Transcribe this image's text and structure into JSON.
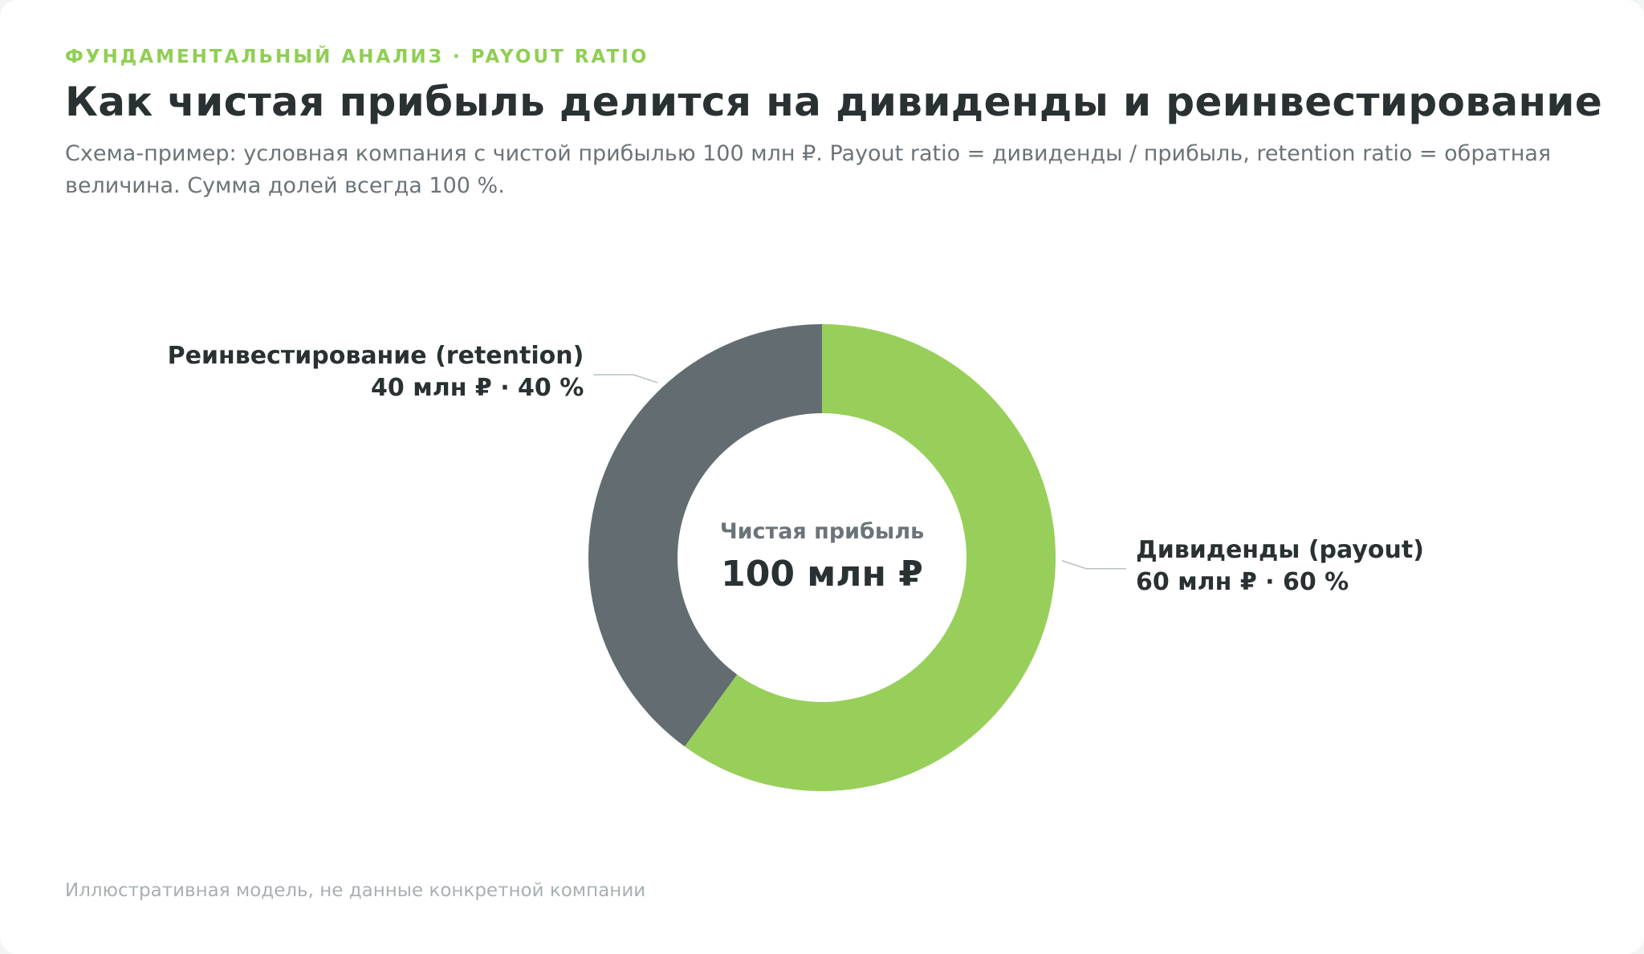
{
  "header": {
    "eyebrow": "ФУНДАМЕНТАЛЬНЫЙ АНАЛИЗ · PAYOUT RATIO",
    "title": "Как чистая прибыль делится на дивиденды и реинвестирование",
    "subtitle": "Схема-пример: условная компания с чистой прибылью 100 млн ₽. Payout ratio = дивиденды / прибыль, retention ratio = обратная величина. Сумма долей всегда 100 %."
  },
  "footnote": "Иллюстративная модель, не данные конкретной компании",
  "chart_data": {
    "type": "pie",
    "donut": true,
    "center": {
      "caption": "Чистая прибыль",
      "value": "100 млн ₽"
    },
    "slices": [
      {
        "name": "Дивиденды (payout)",
        "value": 60,
        "label_value": "60 млн ₽ · 60 %",
        "color": "#97cf5a",
        "label_side": "right"
      },
      {
        "name": "Реинвестирование (retention)",
        "value": 40,
        "label_value": "40 млн ₽ · 40 %",
        "color": "#636d71",
        "label_side": "left"
      }
    ],
    "start_angle": "top, clockwise",
    "leader_color": "#b9c0c3"
  }
}
